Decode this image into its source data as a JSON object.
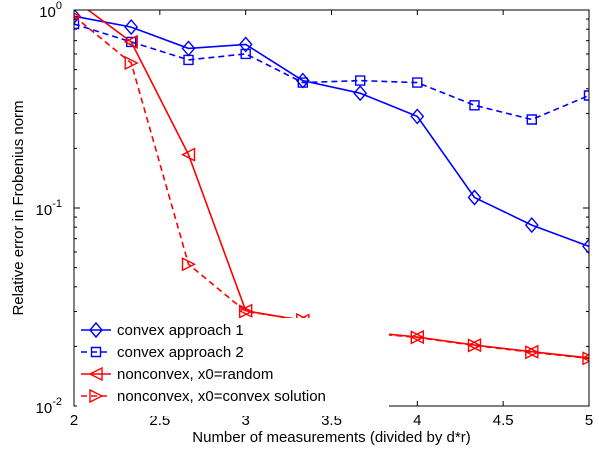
{
  "chart_data": {
    "type": "line",
    "title": "",
    "xlabel": "Number of measurements (divided by d*r)",
    "ylabel": "Relative error in Frobenius norm",
    "xlim": [
      2,
      5
    ],
    "ylim": [
      0.01,
      1
    ],
    "yscale": "log",
    "grid": false,
    "legend_position": "bottom-left",
    "x_ticks": [
      "2",
      "2.5",
      "3",
      "3.5",
      "4",
      "4.5",
      "5"
    ],
    "x_tick_values": [
      2,
      2.5,
      3,
      3.5,
      4,
      4.5,
      5
    ],
    "y_ticks": [
      {
        "value": 1,
        "base": "10",
        "exp": "0"
      },
      {
        "value": 0.1,
        "base": "10",
        "exp": "-1"
      },
      {
        "value": 0.01,
        "base": "10",
        "exp": "-2"
      }
    ],
    "x": [
      2,
      2.333,
      2.667,
      3,
      3.333,
      3.667,
      4,
      4.333,
      4.667,
      5
    ],
    "series": [
      {
        "name": "convex approach 1",
        "color": "#0000ff",
        "line": "solid",
        "marker": "diamond",
        "values": [
          0.93,
          0.82,
          0.64,
          0.67,
          0.44,
          0.38,
          0.29,
          0.113,
          0.082,
          0.064
        ]
      },
      {
        "name": "convex approach 2",
        "color": "#0000ff",
        "line": "dashed",
        "marker": "square",
        "values": [
          0.85,
          0.69,
          0.56,
          0.6,
          0.43,
          0.44,
          0.43,
          0.33,
          0.28,
          0.37
        ]
      },
      {
        "name": "nonconvex, x0=random",
        "color": "#ff0000",
        "line": "solid",
        "marker": "triangle-left",
        "values": [
          1.13,
          0.69,
          0.186,
          0.0303,
          0.027,
          0.0238,
          0.0223,
          0.0203,
          0.0188,
          0.0175
        ]
      },
      {
        "name": "nonconvex, x0=convex solution",
        "color": "#ff0000",
        "line": "dashed",
        "marker": "triangle-right",
        "values": [
          0.93,
          0.54,
          0.052,
          0.03,
          0.0272,
          0.0235,
          0.0222,
          0.0202,
          0.0187,
          0.0174
        ]
      }
    ]
  }
}
